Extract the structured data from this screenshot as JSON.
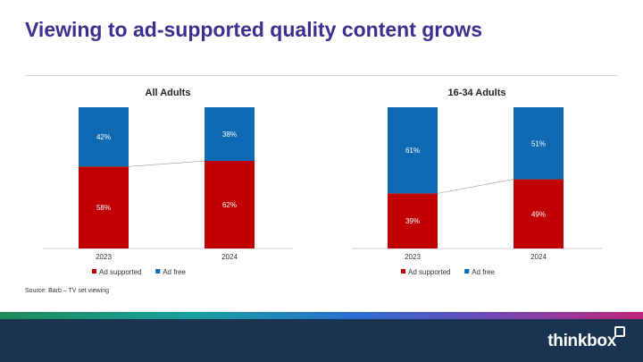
{
  "page": {
    "title": "Viewing to ad-supported quality content grows",
    "source": "Source: Barb – TV set viewing",
    "logo_text": "thinkbox"
  },
  "colors": {
    "ad_supported": "#c00000",
    "ad_free": "#0f6ab4",
    "title": "#3b2f8f"
  },
  "chart_data": [
    {
      "type": "bar",
      "stacked": true,
      "percent_stacked": true,
      "title": "All Adults",
      "categories": [
        "2023",
        "2024"
      ],
      "series": [
        {
          "name": "Ad supported",
          "values": [
            58,
            62
          ],
          "labels": [
            "58%",
            "62%"
          ],
          "color": "#c00000"
        },
        {
          "name": "Ad free",
          "values": [
            42,
            38
          ],
          "labels": [
            "42%",
            "38%"
          ],
          "color": "#0f6ab4"
        }
      ],
      "ylim": [
        0,
        100
      ],
      "series_lines": true,
      "legend": "bottom"
    },
    {
      "type": "bar",
      "stacked": true,
      "percent_stacked": true,
      "title": "16-34 Adults",
      "categories": [
        "2023",
        "2024"
      ],
      "series": [
        {
          "name": "Ad supported",
          "values": [
            39,
            49
          ],
          "labels": [
            "39%",
            "49%"
          ],
          "color": "#c00000"
        },
        {
          "name": "Ad free",
          "values": [
            61,
            51
          ],
          "labels": [
            "61%",
            "51%"
          ],
          "color": "#0f6ab4"
        }
      ],
      "ylim": [
        0,
        100
      ],
      "series_lines": true,
      "legend": "bottom"
    }
  ]
}
